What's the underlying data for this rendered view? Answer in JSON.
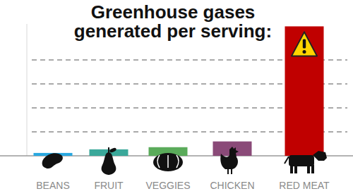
{
  "chart_data": {
    "type": "bar",
    "title": "Greenhouse gases generated per serving:",
    "categories": [
      "BEANS",
      "FRUIT",
      "VEGGIES",
      "CHICKEN",
      "RED MEAT"
    ],
    "values": [
      0.12,
      0.27,
      0.36,
      0.6,
      5.4
    ],
    "colors": [
      "#29a8e0",
      "#3aa89a",
      "#5aab5a",
      "#8a4a78",
      "#c00000"
    ],
    "ylim": [
      0,
      5.5
    ],
    "yticks": [
      0,
      1,
      2,
      3,
      4
    ],
    "grid": true,
    "tick_labels": false
  }
}
